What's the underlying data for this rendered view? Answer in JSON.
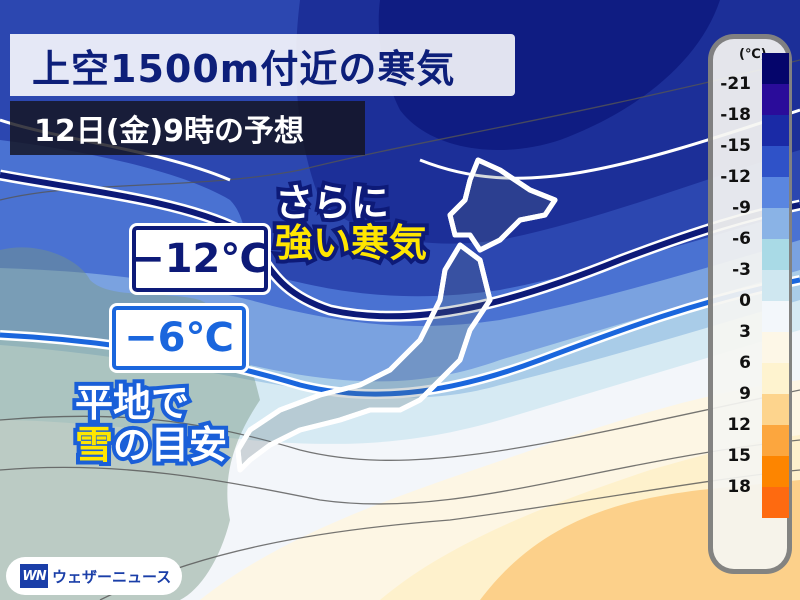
{
  "header": {
    "title": "上空1500m付近の寒気",
    "subtitle": "12日(金)9時の予想"
  },
  "labels": {
    "minus12": "−12℃",
    "minus6": "−6℃",
    "stronger_line1": "さらに",
    "stronger_line2": "強い寒気",
    "plain_line1": "平地で",
    "plain_snow": "雪",
    "plain_rest": "の目安"
  },
  "legend": {
    "unit": "(℃)",
    "colors": [
      "#05056b",
      "#2a0c9a",
      "#1a2aa6",
      "#2f52c8",
      "#5a86e0",
      "#8ab3e6",
      "#a9dae6",
      "#cfe7f0",
      "#f3f7fb",
      "#fdf7e7",
      "#fef3cf",
      "#fdd48d",
      "#fca63e",
      "#fd8500",
      "#fe6a10"
    ],
    "labels": [
      "-21",
      "-18",
      "-15",
      "-12",
      "-9",
      "-6",
      "-3",
      "0",
      "3",
      "6",
      "9",
      "12",
      "15",
      "18"
    ]
  },
  "logo": {
    "mark": "WN",
    "text": "ウェザーニュース"
  }
}
